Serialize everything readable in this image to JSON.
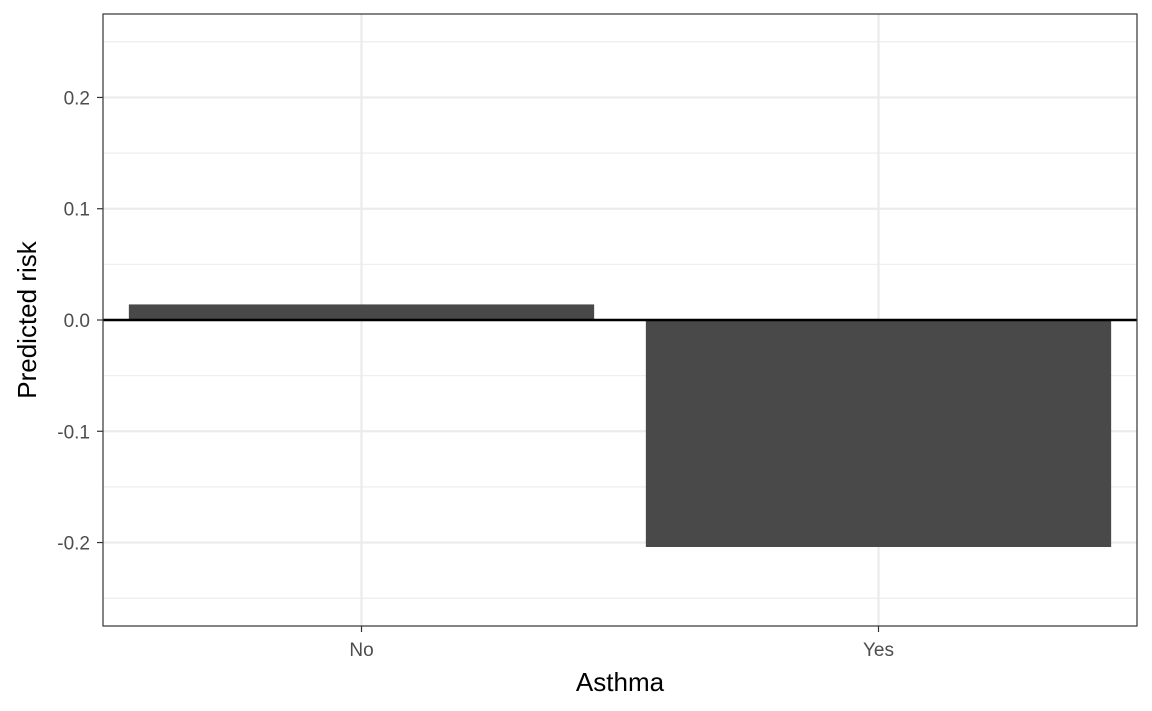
{
  "chart_data": {
    "type": "bar",
    "categories": [
      "No",
      "Yes"
    ],
    "values": [
      0.014,
      -0.204
    ],
    "title": "",
    "xlabel": "Asthma",
    "ylabel": "Predicted risk",
    "ylim": [
      -0.275,
      0.275
    ],
    "y_ticks": [
      0.2,
      0.1,
      0.0,
      -0.1,
      -0.2
    ],
    "y_tick_labels": [
      "0.2",
      "0.1",
      "0.0",
      "-0.1",
      "-0.2"
    ],
    "reference_line": 0,
    "grid": true,
    "legend": "none",
    "bar_color": "#494949",
    "grid_color": "#ebebeb",
    "panel_border_color": "#333333"
  }
}
